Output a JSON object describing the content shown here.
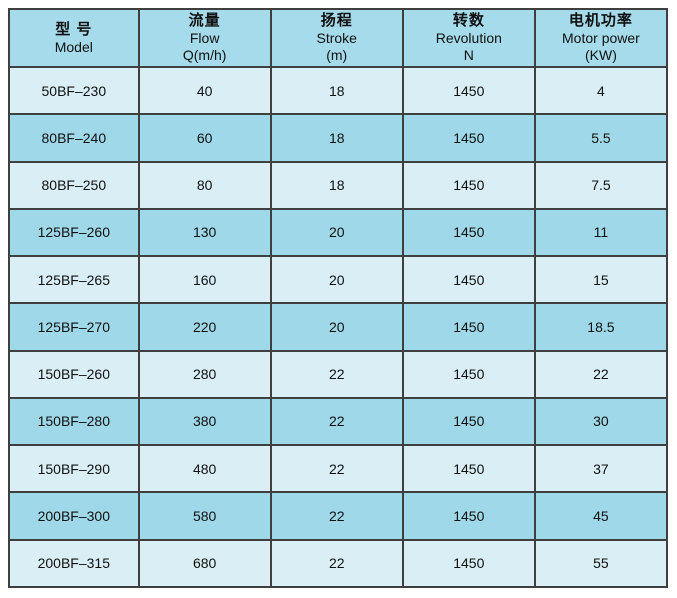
{
  "colors": {
    "header_bg": "#a5dbeb",
    "row_dark": "#9fd8e8",
    "row_light": "#d9eef5",
    "border": "#3f3f3f",
    "text": "#111111",
    "page_bg": "#ffffff"
  },
  "table": {
    "columns": [
      {
        "key": "model",
        "zh": "型 号",
        "en": "Model",
        "unit": ""
      },
      {
        "key": "flow",
        "zh": "流量",
        "en": "Flow",
        "unit": "Q(m/h)"
      },
      {
        "key": "stroke",
        "zh": "扬程",
        "en": "Stroke",
        "unit": "(m)"
      },
      {
        "key": "revolution",
        "zh": "转数",
        "en": "Revolution",
        "unit": "N"
      },
      {
        "key": "power",
        "zh": "电机功率",
        "en": "Motor power",
        "unit": "(KW)"
      }
    ],
    "rows": [
      {
        "model": "50BF–230",
        "flow": "40",
        "stroke": "18",
        "revolution": "1450",
        "power": "4"
      },
      {
        "model": "80BF–240",
        "flow": "60",
        "stroke": "18",
        "revolution": "1450",
        "power": "5.5"
      },
      {
        "model": "80BF–250",
        "flow": "80",
        "stroke": "18",
        "revolution": "1450",
        "power": "7.5"
      },
      {
        "model": "125BF–260",
        "flow": "130",
        "stroke": "20",
        "revolution": "1450",
        "power": "11"
      },
      {
        "model": "125BF–265",
        "flow": "160",
        "stroke": "20",
        "revolution": "1450",
        "power": "15"
      },
      {
        "model": "125BF–270",
        "flow": "220",
        "stroke": "20",
        "revolution": "1450",
        "power": "18.5"
      },
      {
        "model": "150BF–260",
        "flow": "280",
        "stroke": "22",
        "revolution": "1450",
        "power": "22"
      },
      {
        "model": "150BF–280",
        "flow": "380",
        "stroke": "22",
        "revolution": "1450",
        "power": "30"
      },
      {
        "model": "150BF–290",
        "flow": "480",
        "stroke": "22",
        "revolution": "1450",
        "power": "37"
      },
      {
        "model": "200BF–300",
        "flow": "580",
        "stroke": "22",
        "revolution": "1450",
        "power": "45"
      },
      {
        "model": "200BF–315",
        "flow": "680",
        "stroke": "22",
        "revolution": "1450",
        "power": "55"
      }
    ]
  }
}
